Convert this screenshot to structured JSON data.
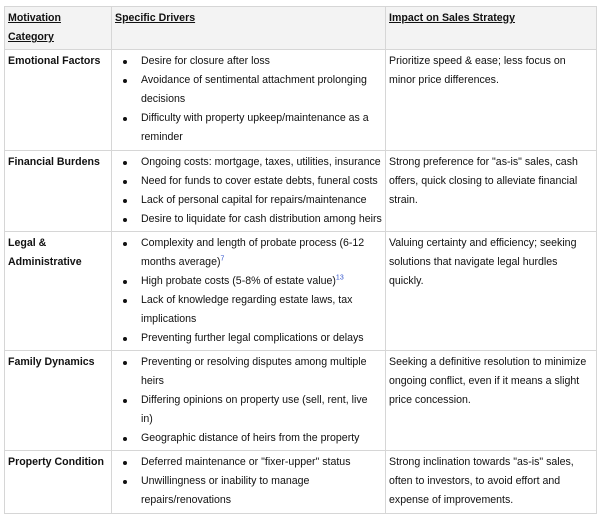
{
  "headers": [
    "Motivation Category",
    "Specific Drivers",
    "Impact on Sales Strategy"
  ],
  "rows": [
    {
      "category": "Emotional Factors",
      "drivers": [
        {
          "text": "Desire for closure after loss"
        },
        {
          "text": "Avoidance of sentimental attachment prolonging decisions"
        },
        {
          "text": "Difficulty with property upkeep/maintenance as a reminder"
        }
      ],
      "impact": "Prioritize speed & ease; less focus on minor price differences."
    },
    {
      "category": "Financial Burdens",
      "drivers": [
        {
          "text": "Ongoing costs: mortgage, taxes, utilities, insurance"
        },
        {
          "text": "Need for funds to cover estate debts, funeral costs"
        },
        {
          "text": "Lack of personal capital for repairs/maintenance"
        },
        {
          "text": "Desire to liquidate for cash distribution among heirs"
        }
      ],
      "impact": "Strong preference for \"as-is\" sales, cash offers, quick closing to alleviate financial strain."
    },
    {
      "category": "Legal & Administrative",
      "drivers": [
        {
          "text": "Complexity and length of probate process (6-12 months average)",
          "ref": "7"
        },
        {
          "text": "High probate costs (5-8% of estate value)",
          "ref": "13"
        },
        {
          "text": "Lack of knowledge regarding estate laws, tax implications"
        },
        {
          "text": "Preventing further legal complications or delays"
        }
      ],
      "impact": "Valuing certainty and efficiency; seeking solutions that navigate legal hurdles quickly."
    },
    {
      "category": "Family Dynamics",
      "drivers": [
        {
          "text": "Preventing or resolving disputes among multiple heirs"
        },
        {
          "text": "Differing opinions on property use (sell, rent, live in)"
        },
        {
          "text": "Geographic distance of heirs from the property"
        }
      ],
      "impact": "Seeking a definitive resolution to minimize ongoing conflict, even if it means a slight price concession."
    },
    {
      "category": "Property Condition",
      "drivers": [
        {
          "text": "Deferred maintenance or \"fixer-upper\" status"
        },
        {
          "text": "Unwillingness or inability to manage repairs/renovations"
        }
      ],
      "impact": "Strong inclination towards \"as-is\" sales, often to investors, to avoid effort and expense of improvements."
    }
  ]
}
